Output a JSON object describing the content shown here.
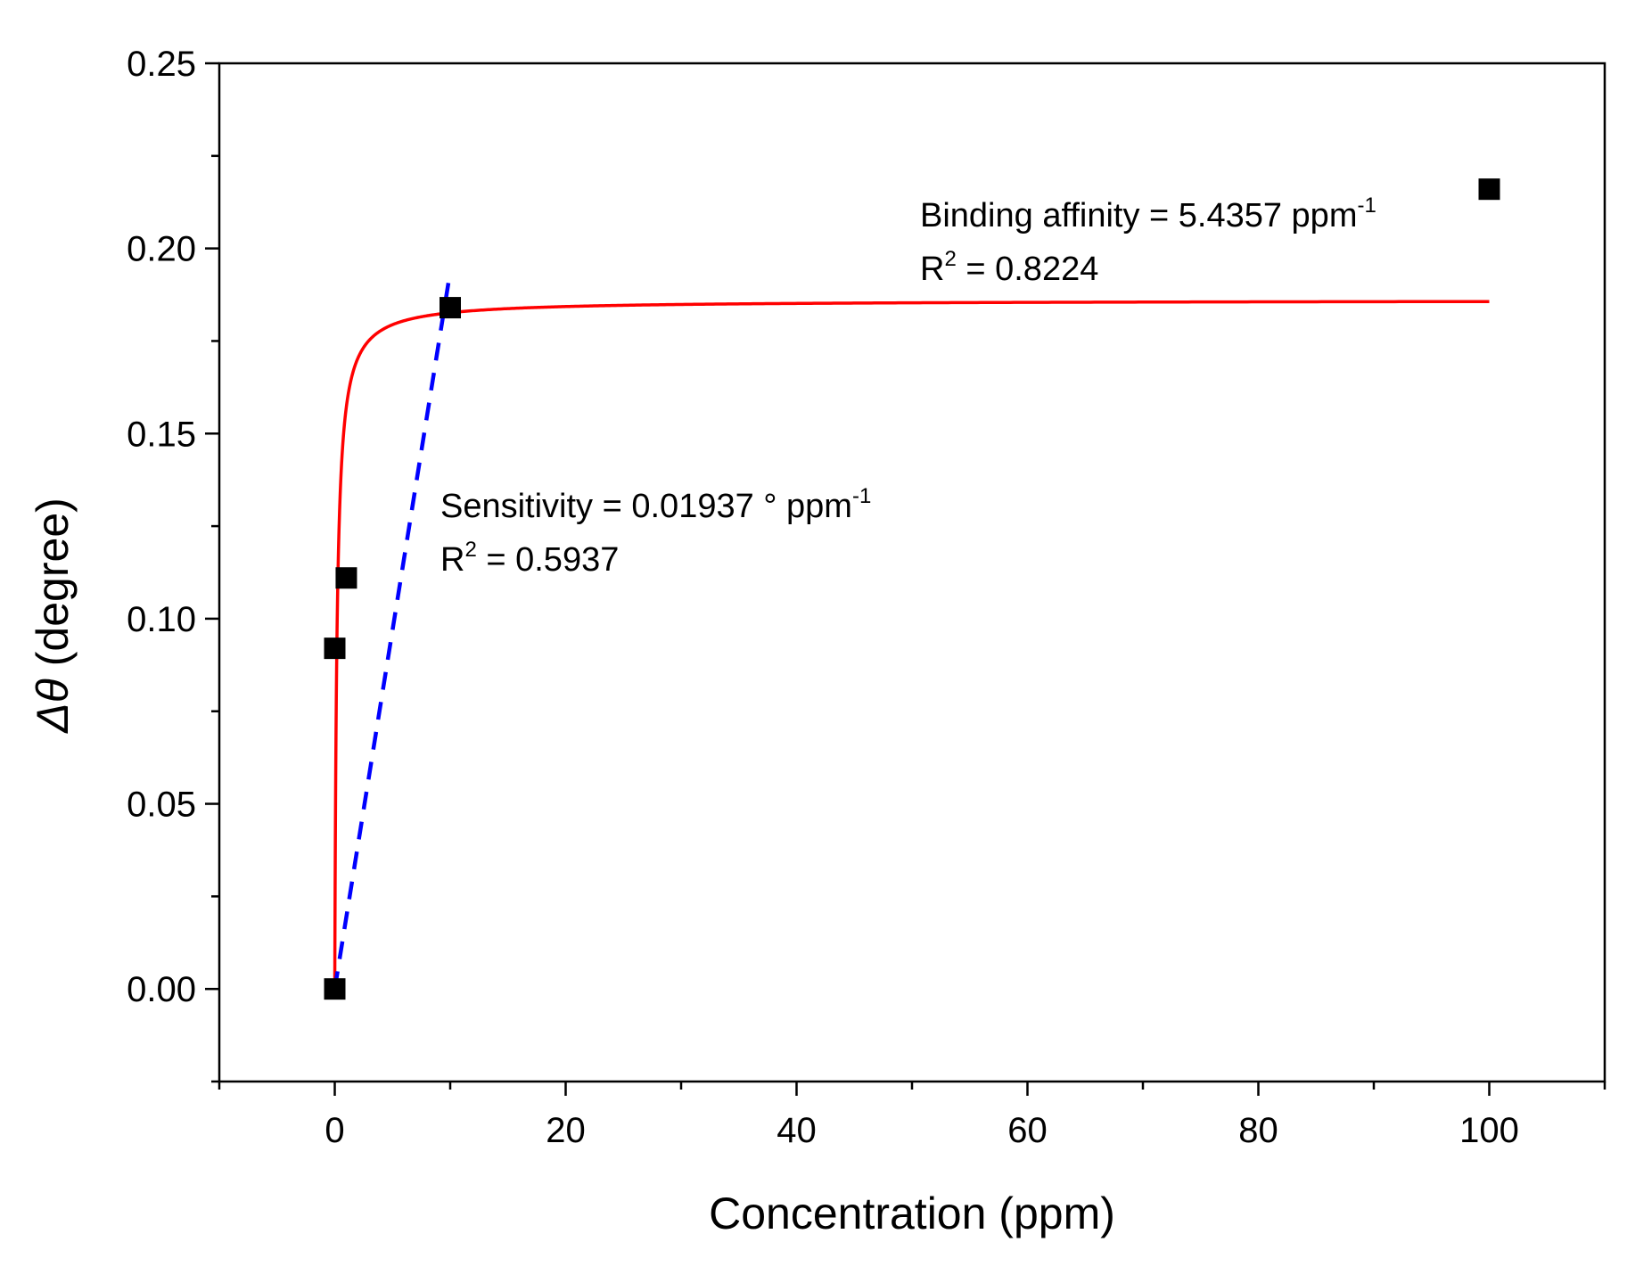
{
  "chart_data": {
    "type": "scatter",
    "title": "",
    "xlabel": "Concentration (ppm)",
    "ylabel": {
      "symbol": "Δθ",
      "unit": " (degree)"
    },
    "xlim": [
      -10,
      110
    ],
    "ylim": [
      -0.025,
      0.25
    ],
    "xticks": [
      0,
      20,
      40,
      60,
      80,
      100
    ],
    "xtick_labels": [
      "0",
      "20",
      "40",
      "60",
      "80",
      "100"
    ],
    "yticks": [
      0.0,
      0.05,
      0.1,
      0.15,
      0.2,
      0.25
    ],
    "ytick_labels": [
      "0.00",
      "0.05",
      "0.10",
      "0.15",
      "0.20",
      "0.25"
    ],
    "grid": false,
    "series": [
      {
        "name": "measured",
        "kind": "scatter",
        "marker": "square",
        "color": "#000000",
        "x": [
          0,
          0,
          1,
          10,
          100
        ],
        "y": [
          0.0,
          0.092,
          0.111,
          0.184,
          0.216
        ]
      },
      {
        "name": "binding-fit",
        "kind": "line",
        "color": "#ff0000",
        "style": "solid",
        "model": "langmuir",
        "bmax": 0.186,
        "k": 5.4357,
        "x_range": [
          0,
          100
        ]
      },
      {
        "name": "linear-fit",
        "kind": "line",
        "color": "#0000ff",
        "style": "dashed",
        "slope": 0.01937,
        "x": [
          0,
          10
        ],
        "y": [
          0.0,
          0.1937
        ]
      }
    ],
    "annotations": [
      {
        "id": "binding",
        "lines": [
          {
            "main": "Binding affinity = 5.4357 ppm",
            "sup": "-1"
          },
          {
            "main": "R",
            "sup": "2",
            "tail": " = 0.8224"
          }
        ]
      },
      {
        "id": "sensitivity",
        "lines": [
          {
            "main": "Sensitivity = 0.01937 ° ppm",
            "sup": "-1"
          },
          {
            "main": "R",
            "sup": "2",
            "tail": " = 0.5937"
          }
        ]
      }
    ]
  }
}
